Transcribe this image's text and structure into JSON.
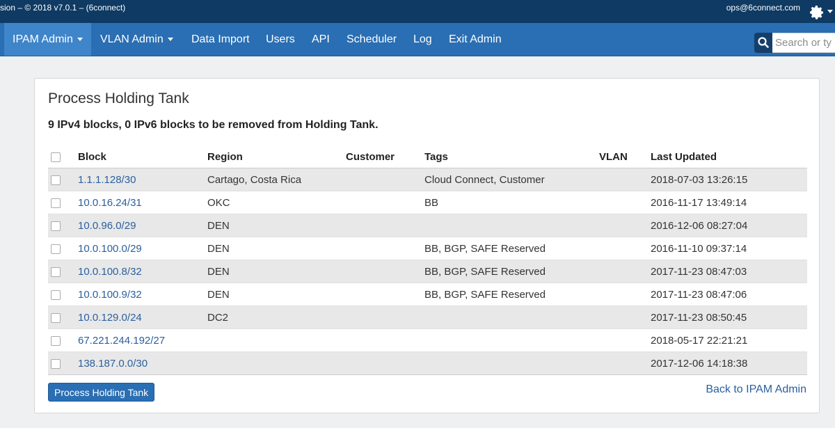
{
  "topbar": {
    "version_text": "sion – © 2018 v7.0.1 – (6connect)",
    "user_email": "ops@6connect.com"
  },
  "nav": {
    "items": [
      {
        "label": "IPAM Admin"
      },
      {
        "label": "VLAN Admin"
      },
      {
        "label": "Data Import"
      },
      {
        "label": "Users"
      },
      {
        "label": "API"
      },
      {
        "label": "Scheduler"
      },
      {
        "label": "Log"
      },
      {
        "label": "Exit Admin"
      }
    ],
    "search_placeholder": "Search or ty"
  },
  "panel": {
    "title": "Process Holding Tank",
    "summary": "9 IPv4 blocks, 0 IPv6 blocks to be removed from Holding Tank.",
    "columns": [
      "Block",
      "Region",
      "Customer",
      "Tags",
      "VLAN",
      "Last Updated"
    ],
    "rows": [
      {
        "block": "1.1.1.128/30",
        "region": "Cartago, Costa Rica",
        "customer": "",
        "tags": "Cloud Connect, Customer",
        "vlan": "",
        "updated": "2018-07-03 13:26:15"
      },
      {
        "block": "10.0.16.24/31",
        "region": "OKC",
        "customer": "",
        "tags": "BB",
        "vlan": "",
        "updated": "2016-11-17 13:49:14"
      },
      {
        "block": "10.0.96.0/29",
        "region": "DEN",
        "customer": "",
        "tags": "",
        "vlan": "",
        "updated": "2016-12-06 08:27:04"
      },
      {
        "block": "10.0.100.0/29",
        "region": "DEN",
        "customer": "",
        "tags": "BB, BGP, SAFE Reserved",
        "vlan": "",
        "updated": "2016-11-10 09:37:14"
      },
      {
        "block": "10.0.100.8/32",
        "region": "DEN",
        "customer": "",
        "tags": "BB, BGP, SAFE Reserved",
        "vlan": "",
        "updated": "2017-11-23 08:47:03"
      },
      {
        "block": "10.0.100.9/32",
        "region": "DEN",
        "customer": "",
        "tags": "BB, BGP, SAFE Reserved",
        "vlan": "",
        "updated": "2017-11-23 08:47:06"
      },
      {
        "block": "10.0.129.0/24",
        "region": "DC2",
        "customer": "",
        "tags": "",
        "vlan": "",
        "updated": "2017-11-23 08:50:45"
      },
      {
        "block": "67.221.244.192/27",
        "region": "",
        "customer": "",
        "tags": "",
        "vlan": "",
        "updated": "2018-05-17 22:21:21"
      },
      {
        "block": "138.187.0.0/30",
        "region": "",
        "customer": "",
        "tags": "",
        "vlan": "",
        "updated": "2017-12-06 14:18:38"
      }
    ],
    "process_button": "Process Holding Tank",
    "back_link": "Back to IPAM Admin"
  }
}
